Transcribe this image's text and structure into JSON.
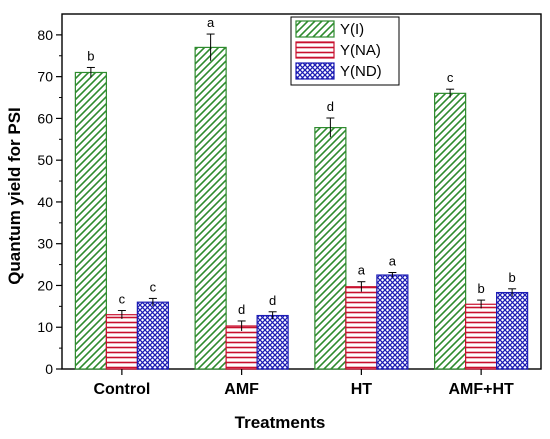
{
  "chart_data": {
    "type": "bar",
    "xlabel": "Treatments",
    "ylabel": "Quantum yield for PSI",
    "ylim": [
      0,
      85
    ],
    "yticks": [
      0,
      10,
      20,
      30,
      40,
      50,
      60,
      70,
      80
    ],
    "ytick_labels": [
      "0",
      "10",
      "20",
      "30",
      "40",
      "50",
      "60",
      "70",
      "80"
    ],
    "categories": [
      "Control",
      "AMF",
      "HT",
      "AMF+HT"
    ],
    "legend_position": "top-center",
    "grid": false,
    "series": [
      {
        "name": "Y(I)",
        "values": [
          71.0,
          77.0,
          57.8,
          66.0
        ],
        "errors": [
          1.2,
          3.2,
          2.3,
          1.0
        ],
        "letters": [
          "b",
          "a",
          "d",
          "c"
        ],
        "color": "#2e8b2e",
        "pattern": "diagonal-hatch"
      },
      {
        "name": "Y(NA)",
        "values": [
          13.0,
          10.3,
          19.7,
          15.5
        ],
        "errors": [
          1.0,
          1.2,
          1.2,
          1.0
        ],
        "letters": [
          "c",
          "d",
          "a",
          "b"
        ],
        "color": "#c8102e",
        "pattern": "horizontal-lines"
      },
      {
        "name": "Y(ND)",
        "values": [
          16.0,
          12.8,
          22.5,
          18.3
        ],
        "errors": [
          0.9,
          0.9,
          0.6,
          0.9
        ],
        "letters": [
          "c",
          "d",
          "a",
          "b"
        ],
        "color": "#1c1cb4",
        "pattern": "crosshatch"
      }
    ]
  }
}
